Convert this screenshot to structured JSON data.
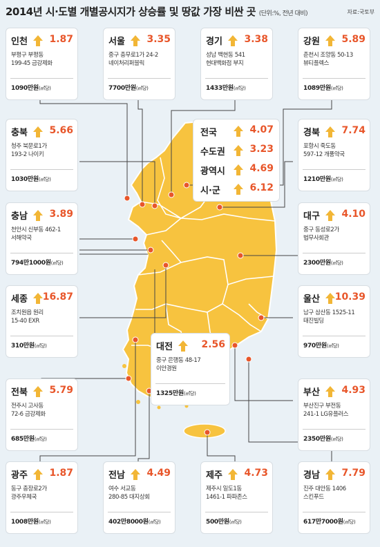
{
  "title": "2014년 시·도별 개별공시지가 상승률 및 땅값 가장 비싼 곳",
  "unit": "(단위:%, 전년 대비)",
  "source": "자료:국토부",
  "price_unit": "(㎡당)",
  "colors": {
    "accent": "#e8562a",
    "arrow": "#f2b636",
    "map_fill": "#f7c33f",
    "map_stroke": "#ffffff",
    "card_bg": "#ffffff",
    "page_bg": "#eaf1f6"
  },
  "summary": [
    {
      "name": "전국",
      "rate": "4.07"
    },
    {
      "name": "수도권",
      "rate": "3.23"
    },
    {
      "name": "광역시",
      "rate": "4.69"
    },
    {
      "name": "시·군",
      "rate": "6.12"
    }
  ],
  "regions": [
    {
      "name": "인천",
      "rate": "1.87",
      "addr1": "부평구 부평동",
      "addr2": "199-45 금강제화",
      "price": "1090만원"
    },
    {
      "name": "서울",
      "rate": "3.35",
      "addr1": "중구 충무로1가 24-2",
      "addr2": "네이처리퍼블릭",
      "price": "7700만원"
    },
    {
      "name": "경기",
      "rate": "3.38",
      "addr1": "성남 백현동 541",
      "addr2": "현대백화점 부지",
      "price": "1433만원"
    },
    {
      "name": "강원",
      "rate": "5.89",
      "addr1": "춘천시 조양동 50-13",
      "addr2": "뷰티플렉스",
      "price": "1089만원"
    },
    {
      "name": "충북",
      "rate": "5.66",
      "addr1": "청주 북문로1가",
      "addr2": "193-2 나이키",
      "price": "1030만원"
    },
    {
      "name": "경북",
      "rate": "7.74",
      "addr1": "포항시 죽도동",
      "addr2": "597-12 개풍약국",
      "price": "1210만원"
    },
    {
      "name": "충남",
      "rate": "3.89",
      "addr1": "천안시 신부동 462-1",
      "addr2": "서해약국",
      "price": "794만1000원"
    },
    {
      "name": "대구",
      "rate": "4.10",
      "addr1": "중구 동성로2가",
      "addr2": "법무사회관",
      "price": "2300만원"
    },
    {
      "name": "세종",
      "rate": "16.87",
      "addr1": "조치원읍 원리",
      "addr2": "15-40 EXR",
      "price": "310만원"
    },
    {
      "name": "울산",
      "rate": "10.39",
      "addr1": "남구 삼산동 1525-11",
      "addr2": "태진빌딩",
      "price": "970만원"
    },
    {
      "name": "대전",
      "rate": "2.56",
      "addr1": "중구 은행동 48-17",
      "addr2": "이안경원",
      "price": "1325만원"
    },
    {
      "name": "전북",
      "rate": "5.79",
      "addr1": "전주시 고사동",
      "addr2": "72-6 금강제화",
      "price": "685만원"
    },
    {
      "name": "부산",
      "rate": "4.93",
      "addr1": "부산진구 부전동",
      "addr2": "241-1 LG유플러스",
      "price": "2350만원"
    },
    {
      "name": "광주",
      "rate": "1.87",
      "addr1": "동구 충장로2가",
      "addr2": "광주우체국",
      "price": "1008만원"
    },
    {
      "name": "전남",
      "rate": "4.49",
      "addr1": "여수 서교동",
      "addr2": "280-85 대지상회",
      "price": "402만8000원"
    },
    {
      "name": "제주",
      "rate": "4.73",
      "addr1": "제주시 일도1동",
      "addr2": "1461-1 파파존스",
      "price": "500만원"
    },
    {
      "name": "경남",
      "rate": "7.79",
      "addr1": "진주 대안동 1406",
      "addr2": "스킨푸드",
      "price": "617만7000원"
    }
  ]
}
